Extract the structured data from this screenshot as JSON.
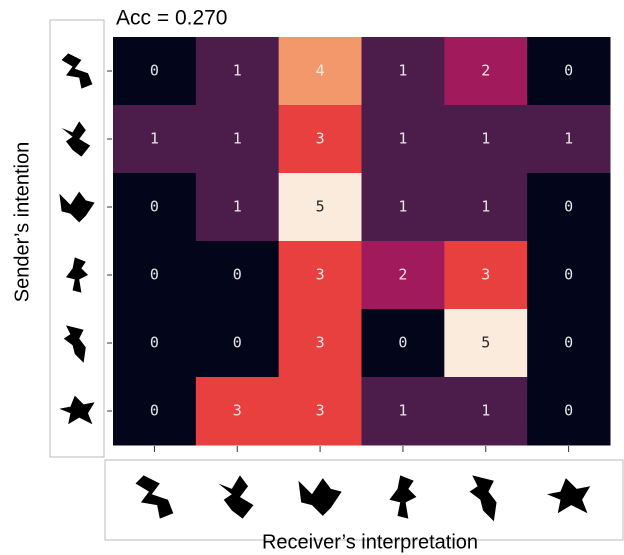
{
  "chart_data": {
    "type": "heatmap",
    "title": "Acc = 0.270",
    "x_label": "Receiver’s interpretation",
    "y_label": "Sender’s intention",
    "x_categories": [
      null,
      null,
      null,
      null,
      null,
      null
    ],
    "y_categories": [
      null,
      null,
      null,
      null,
      null,
      null
    ],
    "values": [
      [
        0,
        1,
        4,
        1,
        2,
        0
      ],
      [
        1,
        1,
        3,
        1,
        1,
        1
      ],
      [
        0,
        1,
        5,
        1,
        1,
        0
      ],
      [
        0,
        0,
        3,
        2,
        3,
        0
      ],
      [
        0,
        0,
        3,
        0,
        5,
        0
      ],
      [
        0,
        3,
        3,
        1,
        1,
        0
      ]
    ],
    "colormap": [
      "#03051a",
      "#4c1d4b",
      "#a11a5b",
      "#e83f3f",
      "#f3986b",
      "#faebdd"
    ]
  }
}
